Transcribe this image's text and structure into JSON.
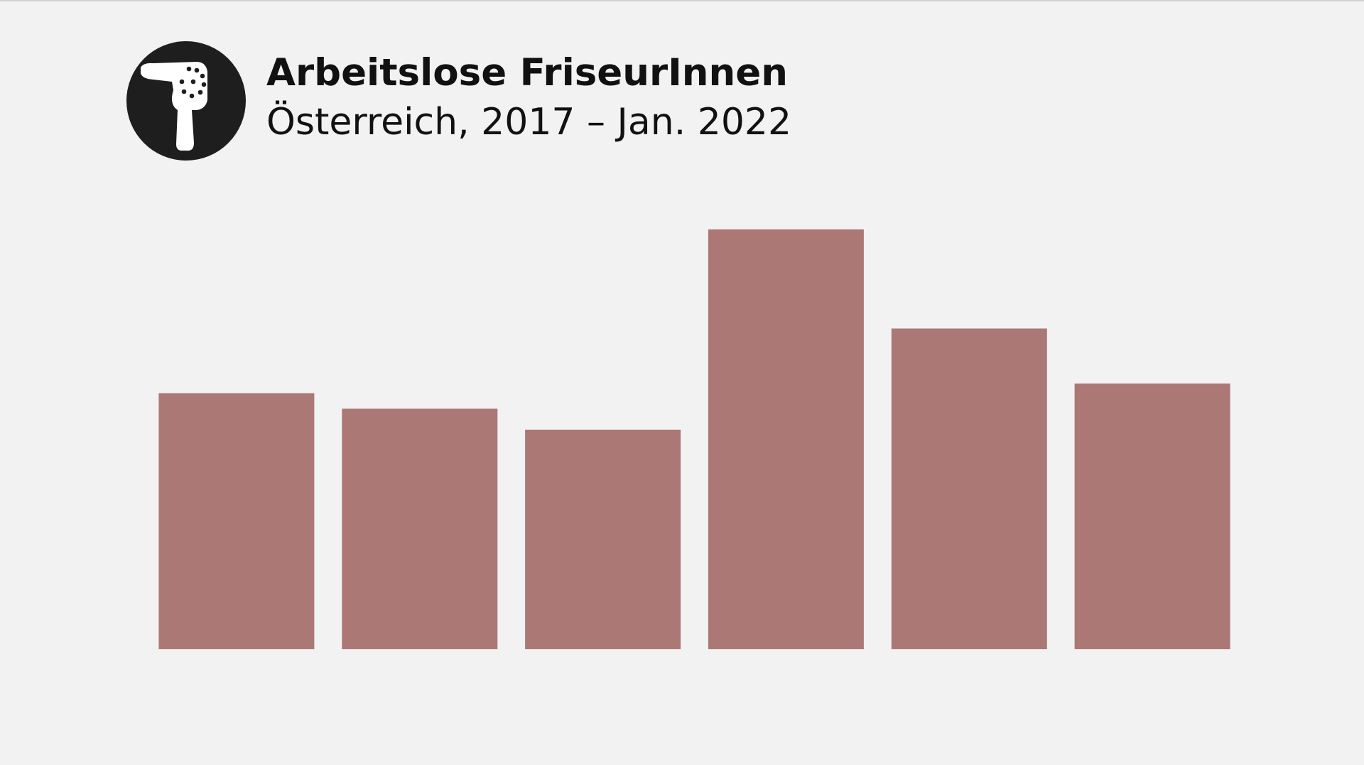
{
  "header": {
    "title": "Arbeitslose FriseurInnen",
    "subtitle": "Österreich, 2017 – Jan. 2022",
    "icon": "hairdryer-icon"
  },
  "colors": {
    "bar": "#ab7876",
    "icon_circle": "#1d1e1d",
    "icon_fg": "#ffffff",
    "background": "#f2f2f2"
  },
  "chart_data": {
    "type": "bar",
    "categories": [
      "",
      "",
      "",
      "",
      "",
      ""
    ],
    "values": [
      0.61,
      0.573,
      0.523,
      1.0,
      0.764,
      0.633
    ],
    "title": "Arbeitslose FriseurInnen",
    "subtitle": "Österreich, 2017 – Jan. 2022",
    "ylim": [
      0,
      1.0
    ],
    "grid": false,
    "legend": "none"
  }
}
